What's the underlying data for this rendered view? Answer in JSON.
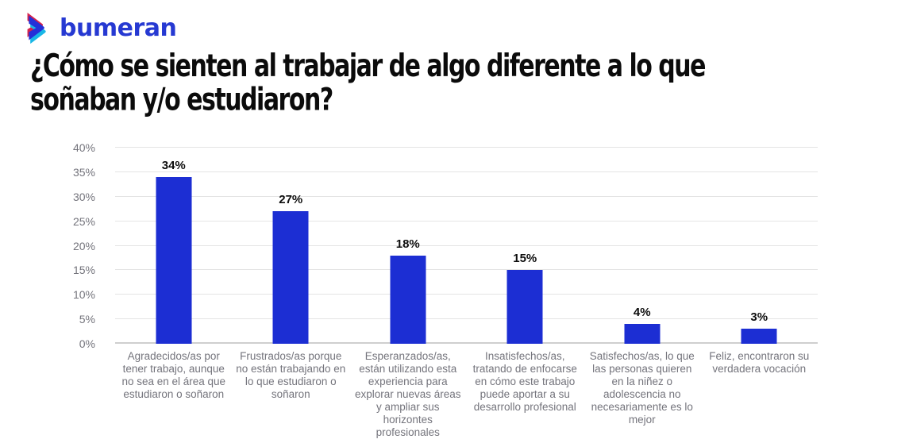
{
  "brand": {
    "logo_text": "bumeran",
    "wordmark_color": "#2639D2",
    "icon_colors": {
      "red": "#D6224C",
      "blue": "#2430D8",
      "cyan": "#19B7E6"
    }
  },
  "title": {
    "full": "¿Cómo se sienten al trabajar de algo diferente a lo que soñaban y/o estudiaron?",
    "line1": "¿Cómo se sienten al trabajar de algo diferente a lo que",
    "line2": "soñaban y/o estudiaron?"
  },
  "chart_data": {
    "type": "bar",
    "title": "¿Cómo se sienten al trabajar de algo diferente a lo que soñaban y/o estudiaron?",
    "categories": [
      "Agradecidos/as por tener trabajo, aunque no sea en el área que estudiaron o soñaron",
      "Frustrados/as porque no están trabajando en lo que estudiaron o soñaron",
      "Esperanzados/as, están utilizando esta experiencia para explorar nuevas áreas y ampliar sus horizontes profesionales",
      "Insatisfechos/as, tratando de enfocarse en cómo este trabajo puede aportar a su desarrollo profesional",
      "Satisfechos/as, lo que las personas quieren en la niñez o adolescencia no necesariamente es lo mejor",
      "Feliz, encontraron su verdadera vocación"
    ],
    "values": [
      34,
      27,
      18,
      15,
      4,
      3
    ],
    "value_labels": [
      "34%",
      "27%",
      "18%",
      "15%",
      "4%",
      "3%"
    ],
    "y_ticks": [
      0,
      5,
      10,
      15,
      20,
      25,
      30,
      35,
      40
    ],
    "y_tick_labels": [
      "0%",
      "5%",
      "10%",
      "15%",
      "20%",
      "25%",
      "30%",
      "35%",
      "40%"
    ],
    "ylim": [
      0,
      40
    ],
    "xlabel": "",
    "ylabel": "",
    "grid": true,
    "legend": false,
    "bar_color": "#1C2ED3",
    "value_label_color": "#0D0D0D",
    "axis_text_color": "#74747C",
    "gridline_color": "#E4E4E4",
    "baseline_color": "#CFCFCF"
  }
}
